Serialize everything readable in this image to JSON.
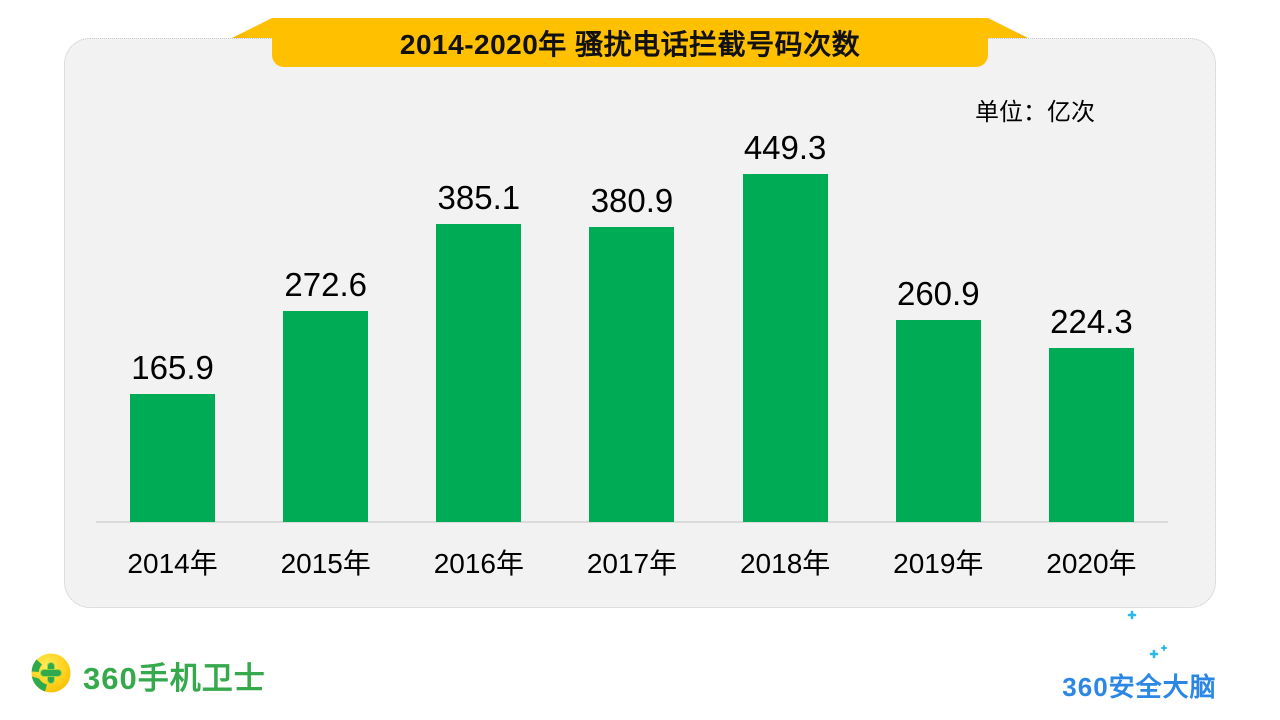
{
  "banner": {
    "title": "2014-2020年 骚扰电话拦截号码次数"
  },
  "unit_label": "单位：亿次",
  "chart_data": {
    "type": "bar",
    "title": "2014-2020年 骚扰电话拦截号码次数",
    "unit": "亿次",
    "categories": [
      "2014年",
      "2015年",
      "2016年",
      "2017年",
      "2018年",
      "2019年",
      "2020年"
    ],
    "values": [
      165.9,
      272.6,
      385.1,
      380.9,
      449.3,
      260.9,
      224.3
    ],
    "ylim": [
      0,
      480
    ],
    "grid": false,
    "legend": false,
    "bar_color": "#00AB55",
    "label_position": "above-bar"
  },
  "footer": {
    "left_logo_text": "360手机卫士",
    "right_logo_text": "360安全大脑"
  },
  "colors": {
    "banner_yellow": "#FFC000",
    "bar_green": "#00AB55",
    "card_background": "#F2F2F2",
    "baseline_gray": "#DBDBDB",
    "logo_green": "#35A94C",
    "logo_blue": "#2B87E3",
    "logo_cyan": "#20C4EC"
  }
}
